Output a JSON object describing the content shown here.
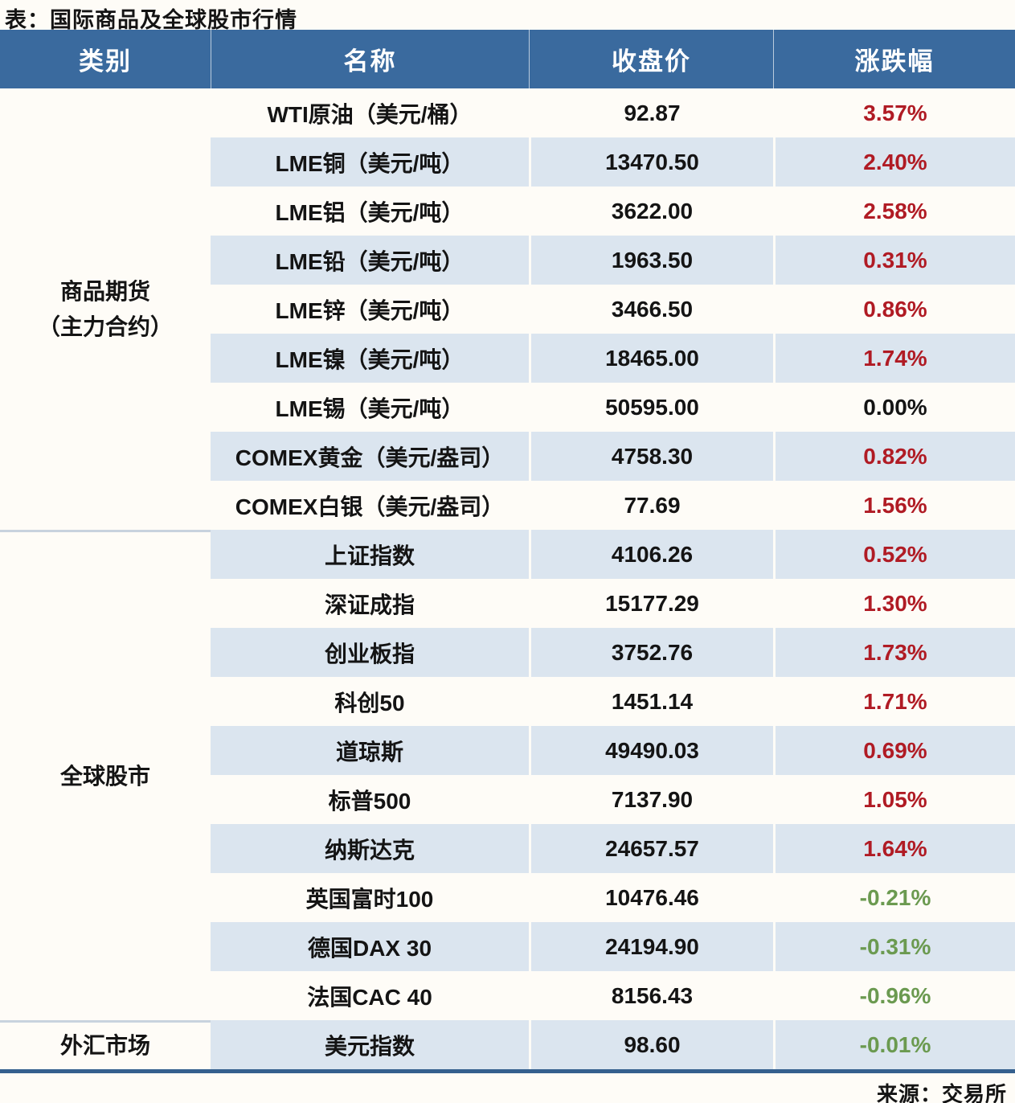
{
  "title": "表：国际商品及全球股市行情",
  "source": "来源：交易所",
  "columns": [
    "类别",
    "名称",
    "收盘价",
    "涨跌幅"
  ],
  "categories": [
    {
      "label": "商品期货（主力合约）",
      "lines": [
        "商品期货",
        "（主力合约）"
      ],
      "row_span": 9
    },
    {
      "label": "全球股市",
      "lines": [
        "全球股市"
      ],
      "row_span": 10
    },
    {
      "label": "外汇市场",
      "lines": [
        "外汇市场"
      ],
      "row_span": 1
    }
  ],
  "rows": [
    {
      "name": "WTI原油（美元/桶）",
      "close": "92.87",
      "change": "3.57%",
      "direction": "up"
    },
    {
      "name": "LME铜（美元/吨）",
      "close": "13470.50",
      "change": "2.40%",
      "direction": "up"
    },
    {
      "name": "LME铝（美元/吨）",
      "close": "3622.00",
      "change": "2.58%",
      "direction": "up"
    },
    {
      "name": "LME铅（美元/吨）",
      "close": "1963.50",
      "change": "0.31%",
      "direction": "up"
    },
    {
      "name": "LME锌（美元/吨）",
      "close": "3466.50",
      "change": "0.86%",
      "direction": "up"
    },
    {
      "name": "LME镍（美元/吨）",
      "close": "18465.00",
      "change": "1.74%",
      "direction": "up"
    },
    {
      "name": "LME锡（美元/吨）",
      "close": "50595.00",
      "change": "0.00%",
      "direction": "flat"
    },
    {
      "name": "COMEX黄金（美元/盎司）",
      "close": "4758.30",
      "change": "0.82%",
      "direction": "up"
    },
    {
      "name": "COMEX白银（美元/盎司）",
      "close": "77.69",
      "change": "1.56%",
      "direction": "up"
    },
    {
      "name": "上证指数",
      "close": "4106.26",
      "change": "0.52%",
      "direction": "up"
    },
    {
      "name": "深证成指",
      "close": "15177.29",
      "change": "1.30%",
      "direction": "up"
    },
    {
      "name": "创业板指",
      "close": "3752.76",
      "change": "1.73%",
      "direction": "up"
    },
    {
      "name": "科创50",
      "close": "1451.14",
      "change": "1.71%",
      "direction": "up"
    },
    {
      "name": "道琼斯",
      "close": "49490.03",
      "change": "0.69%",
      "direction": "up"
    },
    {
      "name": "标普500",
      "close": "7137.90",
      "change": "1.05%",
      "direction": "up"
    },
    {
      "name": "纳斯达克",
      "close": "24657.57",
      "change": "1.64%",
      "direction": "up"
    },
    {
      "name": "英国富时100",
      "close": "10476.46",
      "change": "-0.21%",
      "direction": "down"
    },
    {
      "name": "德国DAX 30",
      "close": "24194.90",
      "change": "-0.31%",
      "direction": "down"
    },
    {
      "name": "法国CAC 40",
      "close": "8156.43",
      "change": "-0.96%",
      "direction": "down"
    },
    {
      "name": "美元指数",
      "close": "98.60",
      "change": "-0.01%",
      "direction": "down"
    }
  ],
  "colors": {
    "up": "#b01b24",
    "down": "#6b9a50",
    "flat": "#141414",
    "header_bg": "#3a6a9e",
    "stripe": "#dbe5ef",
    "table_border": "#35608e"
  }
}
